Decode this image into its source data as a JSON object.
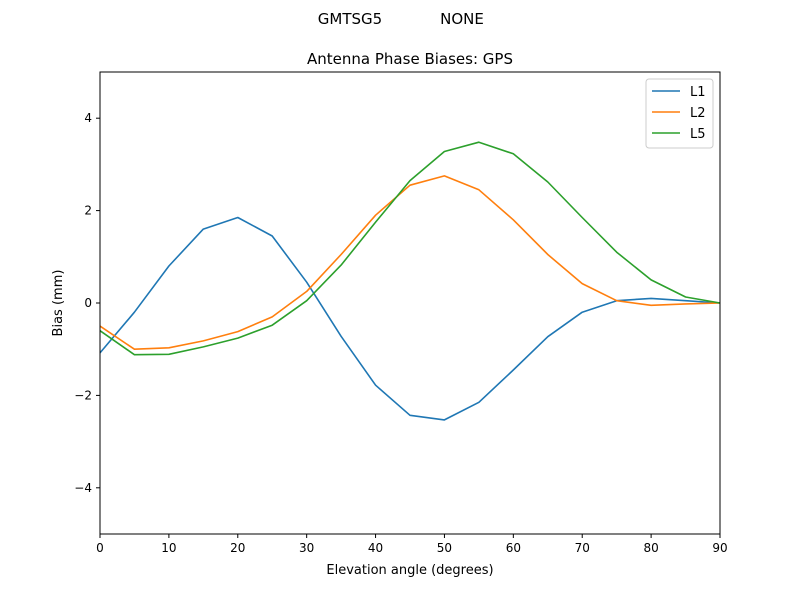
{
  "suptitle": {
    "left": "GMTSG5",
    "right": "NONE"
  },
  "chart_data": {
    "type": "line",
    "title": "Antenna Phase Biases: GPS",
    "xlabel": "Elevation angle (degrees)",
    "ylabel": "Bias (mm)",
    "xlim": [
      0,
      90
    ],
    "ylim": [
      -5,
      5
    ],
    "xticks": [
      0,
      10,
      20,
      30,
      40,
      50,
      60,
      70,
      80,
      90
    ],
    "xtick_labels": [
      "0",
      "10",
      "20",
      "30",
      "40",
      "50",
      "60",
      "70",
      "80",
      "90"
    ],
    "yticks": [
      -4,
      -2,
      0,
      2,
      4
    ],
    "ytick_labels": [
      "−4",
      "−2",
      "0",
      "2",
      "4"
    ],
    "grid": false,
    "legend_position": "upper-right",
    "x": [
      0,
      5,
      10,
      15,
      20,
      25,
      30,
      35,
      40,
      45,
      50,
      55,
      60,
      65,
      70,
      75,
      80,
      85,
      90
    ],
    "series": [
      {
        "name": "L1",
        "color": "#1f77b4",
        "values": [
          -1.08,
          -0.2,
          0.8,
          1.6,
          1.85,
          1.45,
          0.45,
          -0.72,
          -1.78,
          -2.43,
          -2.53,
          -2.15,
          -1.45,
          -0.73,
          -0.2,
          0.05,
          0.1,
          0.05,
          0.0
        ]
      },
      {
        "name": "L2",
        "color": "#ff7f0e",
        "values": [
          -0.5,
          -1.0,
          -0.97,
          -0.82,
          -0.62,
          -0.3,
          0.25,
          1.05,
          1.9,
          2.55,
          2.75,
          2.45,
          1.8,
          1.05,
          0.42,
          0.05,
          -0.05,
          -0.02,
          0.0
        ]
      },
      {
        "name": "L5",
        "color": "#2ca02c",
        "values": [
          -0.6,
          -1.12,
          -1.11,
          -0.95,
          -0.76,
          -0.48,
          0.05,
          0.82,
          1.75,
          2.65,
          3.28,
          3.48,
          3.23,
          2.62,
          1.85,
          1.1,
          0.5,
          0.13,
          0.0
        ]
      }
    ]
  }
}
